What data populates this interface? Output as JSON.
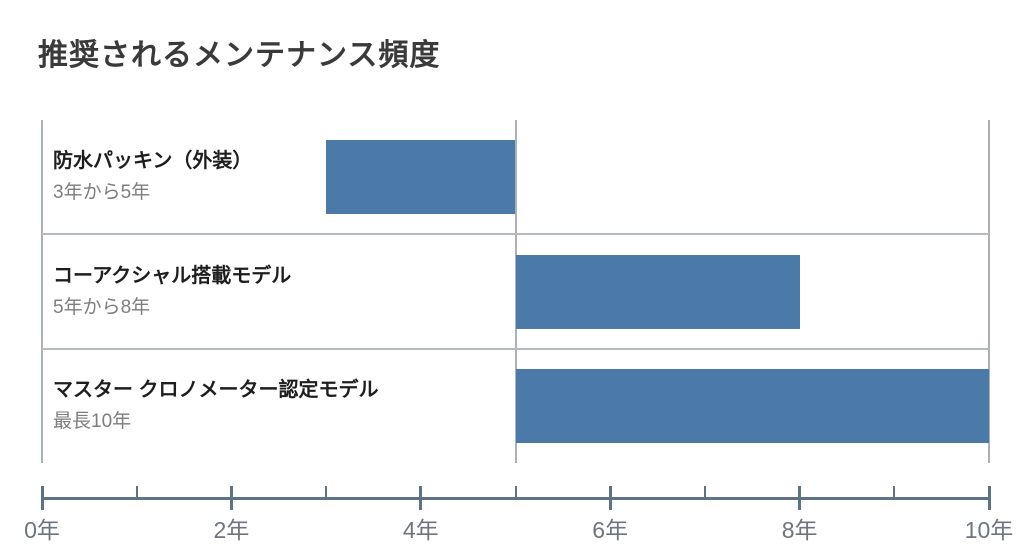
{
  "title": "推奨されるメンテナンス頻度",
  "colors": {
    "background": "#ffffff",
    "bar": "#4b7aa8",
    "grid": "#a9b1b9",
    "separator": "#b3bac0",
    "axis": "#5d7487",
    "title_text": "#3a3a3a",
    "label_text": "#1e1e1e",
    "sublabel_text": "#7e7e7e",
    "tick_text": "#6d7580"
  },
  "chart_data": {
    "type": "bar",
    "orientation": "horizontal",
    "title": "推奨されるメンテナンス頻度",
    "rows": [
      {
        "label": "防水パッキン（外装）",
        "sublabel": "3年から5年",
        "start": 3,
        "end": 5
      },
      {
        "label": "コーアクシャル搭載モデル",
        "sublabel": "5年から8年",
        "start": 5,
        "end": 8
      },
      {
        "label": "マスター クロノメーター認定モデル",
        "sublabel": "最長10年",
        "start": 5,
        "end": 10
      }
    ],
    "x_axis": {
      "min": 0,
      "max": 10,
      "major_tick_step": 2,
      "minor_tick_step": 1,
      "unit": "年",
      "tick_labels": [
        "0年",
        "2年",
        "4年",
        "6年",
        "8年",
        "10年"
      ]
    },
    "gridlines_x": [
      0,
      5,
      10
    ],
    "legend": "none",
    "grid": "vertical-reference-lines"
  }
}
